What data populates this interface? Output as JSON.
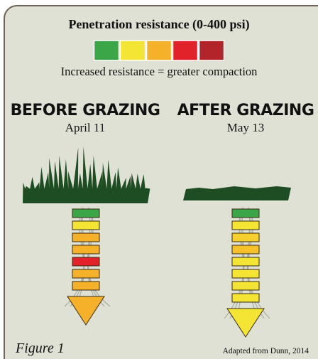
{
  "title": "Penetration resistance (0-400 psi)",
  "legend_colors": [
    "#3aa648",
    "#f4e433",
    "#f6b12a",
    "#e2222a",
    "#b3232a"
  ],
  "caption": "Increased resistance = greater compaction",
  "panels": [
    {
      "heading": "Before grazing",
      "date": "April 11",
      "segments": [
        "#3aa648",
        "#f4e433",
        "#f6b12a",
        "#f6b12a",
        "#e2222a",
        "#f6b12a",
        "#f6b12a"
      ],
      "tip": "#f6b12a"
    },
    {
      "heading": "After grazing",
      "date": "May 13",
      "segments": [
        "#3aa648",
        "#f4e433",
        "#f6d02e",
        "#f6c02a",
        "#f4e433",
        "#f4e433",
        "#f4e433",
        "#f4e433"
      ],
      "tip": "#f4e433"
    }
  ],
  "figure_label": "Figure 1",
  "source": "Adapted from Dunn, 2014"
}
